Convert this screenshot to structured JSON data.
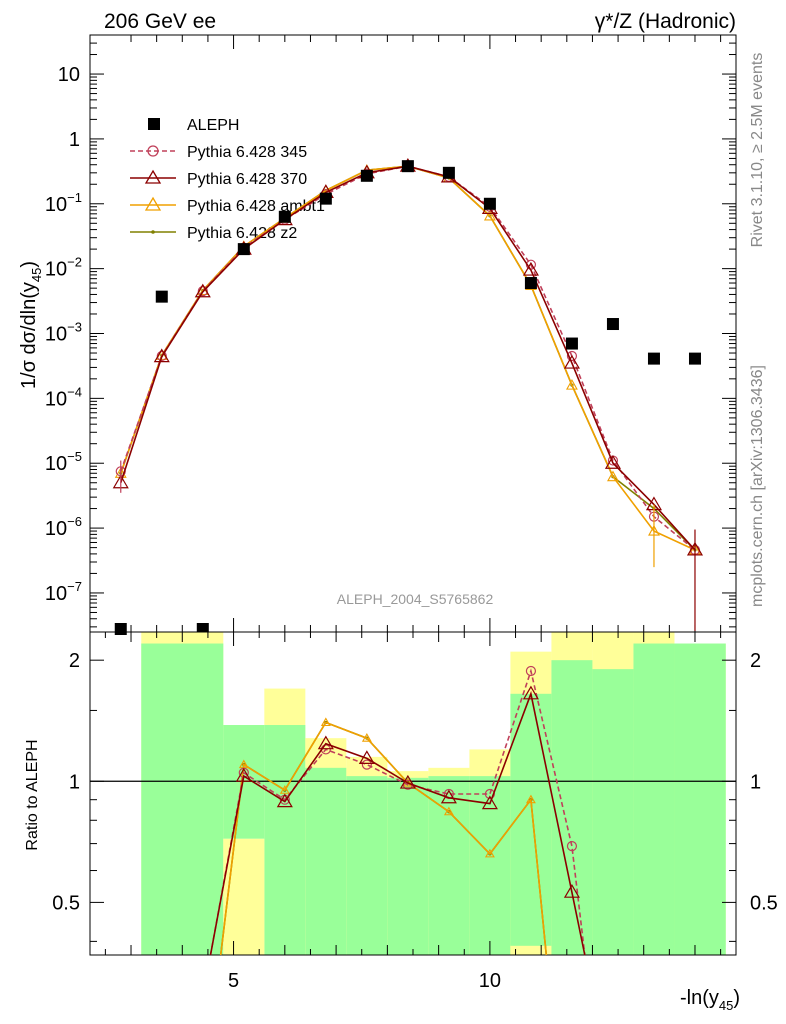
{
  "header": {
    "left_title": "206 GeV ee",
    "right_title": "γ*/Z (Hadronic)",
    "side_label_top": "Rivet 3.1.10, ≥ 2.5M events",
    "side_label_bottom": "mcplots.cern.ch [arXiv:1306.3436]",
    "watermark": "ALEPH_2004_S5765862"
  },
  "chart_data": [
    {
      "type": "line",
      "ylabel": "1/σ  dσ/dln(y45)",
      "ylabel_main": "1/σ  dσ/dln(y",
      "ylabel_sub": "45",
      "ylabel_close": ")",
      "yscale": "log",
      "ylim": [
        2.5e-08,
        40
      ],
      "xlim": [
        2.2,
        14.8
      ],
      "ytick_labels": [
        {
          "v": 10,
          "t": "10",
          "e": ""
        },
        {
          "v": 1,
          "t": "1",
          "e": ""
        },
        {
          "v": 0.1,
          "t": "10",
          "e": "−1"
        },
        {
          "v": 0.01,
          "t": "10",
          "e": "−2"
        },
        {
          "v": 0.001,
          "t": "10",
          "e": "−3"
        },
        {
          "v": 0.0001,
          "t": "10",
          "e": "−4"
        },
        {
          "v": 1e-05,
          "t": "10",
          "e": "−5"
        },
        {
          "v": 1e-06,
          "t": "10",
          "e": "−6"
        },
        {
          "v": 1e-07,
          "t": "10",
          "e": "−7"
        }
      ],
      "legend": {
        "placement": "top-left",
        "entries": [
          {
            "name": "ALEPH",
            "color": "#000000",
            "marker": "square"
          },
          {
            "name": "Pythia 6.428 345",
            "color": "#c0405a",
            "marker": "circle",
            "dash": true
          },
          {
            "name": "Pythia 6.428 370",
            "color": "#8b0000",
            "marker": "triangle"
          },
          {
            "name": "Pythia 6.428 ambt1",
            "color": "#f0a000",
            "marker": "triangle"
          },
          {
            "name": "Pythia 6.428 z2",
            "color": "#808000",
            "marker": "dot"
          }
        ]
      },
      "data": {
        "name": "ALEPH",
        "x": [
          2.8,
          3.6,
          4.4,
          5.2,
          6.0,
          6.8,
          7.6,
          8.4,
          9.2,
          10.0,
          10.8,
          11.6,
          12.4,
          13.2,
          14.0
        ],
        "y": [
          2.6e-08,
          0.0037,
          2.6e-08,
          0.02,
          0.063,
          0.12,
          0.27,
          0.38,
          0.3,
          0.1,
          0.006,
          0.0007,
          0.0014,
          0.00041,
          0.00041
        ]
      },
      "series": [
        {
          "name": "Pythia 6.428 345",
          "color": "#c0405a",
          "x": [
            2.8,
            3.6,
            4.4,
            5.2,
            6.0,
            6.8,
            7.6,
            8.4,
            9.2,
            10.0,
            10.8,
            11.6,
            12.4,
            13.2,
            14.0
          ],
          "y": [
            7.5e-06,
            0.00045,
            0.0045,
            0.021,
            0.057,
            0.14,
            0.29,
            0.38,
            0.26,
            0.09,
            0.0115,
            0.00045,
            1.1e-05,
            1.5e-06,
            4.6e-07
          ]
        },
        {
          "name": "Pythia 6.428 370",
          "color": "#8b0000",
          "x": [
            2.8,
            3.6,
            4.4,
            5.2,
            6.0,
            6.8,
            7.6,
            8.4,
            9.2,
            10.0,
            10.8,
            11.6,
            12.4,
            13.2,
            14.0
          ],
          "y": [
            5e-06,
            0.00044,
            0.0044,
            0.02,
            0.057,
            0.15,
            0.3,
            0.38,
            0.26,
            0.085,
            0.0095,
            0.00035,
            1e-05,
            2.3e-06,
            4.6e-07
          ]
        },
        {
          "name": "Pythia 6.428 ambt1",
          "color": "#f0a000",
          "x": [
            2.8,
            3.6,
            4.4,
            5.2,
            6.0,
            6.8,
            7.6,
            8.4,
            9.2,
            10.0,
            10.8,
            11.6,
            12.4,
            13.2,
            14.0
          ],
          "y": [
            7e-06,
            0.00046,
            0.0046,
            0.022,
            0.06,
            0.16,
            0.33,
            0.38,
            0.25,
            0.065,
            0.0055,
            0.00016,
            6.2e-06,
            9e-07,
            4.6e-07
          ]
        },
        {
          "name": "Pythia 6.428 z2",
          "color": "#808000",
          "x": [
            2.8,
            3.6,
            4.4,
            5.2,
            6.0,
            6.8,
            7.6,
            8.4,
            9.2,
            10.0,
            10.8,
            11.6,
            12.4,
            13.2,
            14.0
          ],
          "y": [
            7e-06,
            0.00046,
            0.0046,
            0.022,
            0.06,
            0.16,
            0.33,
            0.38,
            0.25,
            0.065,
            0.0055,
            0.00016,
            6.2e-06,
            2e-06,
            4.6e-07
          ]
        }
      ]
    },
    {
      "type": "line",
      "xlabel": "-ln(y45)",
      "xlabel_main": "-ln(y",
      "xlabel_sub": "45",
      "xlabel_close": ")",
      "ylabel": "Ratio to ALEPH",
      "yscale": "log",
      "ylim": [
        0.37,
        2.35
      ],
      "xlim": [
        2.2,
        14.8
      ],
      "xtick_labels": [
        5,
        10
      ],
      "ytick_labels": [
        0.5,
        1,
        2
      ],
      "bands": {
        "edges": [
          3.2,
          4.8,
          5.6,
          6.4,
          7.2,
          8.0,
          8.8,
          9.6,
          10.4,
          11.2,
          12.0,
          12.8,
          13.6,
          14.6
        ],
        "green": [
          [
            0.37,
            2.2
          ],
          [
            0.37,
            0.37
          ],
          [
            0.37,
            1.38
          ],
          [
            0.37,
            1.08
          ],
          [
            0.37,
            1.03
          ],
          [
            0.37,
            1.02
          ],
          [
            0.37,
            1.03
          ],
          [
            0.37,
            1.03
          ],
          [
            0.37,
            1.65
          ],
          [
            0.37,
            2.0
          ],
          [
            0.37,
            1.9
          ],
          [
            0.37,
            2.2
          ],
          [
            0.37,
            2.2
          ]
        ],
        "yellow": [
          [
            0.37,
            2.35
          ],
          [
            0.37,
            0.37
          ],
          [
            0.37,
            1.7
          ],
          [
            0.37,
            1.28
          ],
          [
            0.37,
            1.15
          ],
          [
            0.37,
            1.06
          ],
          [
            0.37,
            1.08
          ],
          [
            0.37,
            1.2
          ],
          [
            0.37,
            2.1
          ],
          [
            0.37,
            2.35
          ],
          [
            0.37,
            2.35
          ],
          [
            0.37,
            2.35
          ],
          [
            0.37,
            2.2
          ]
        ],
        "note": "bands per bin as [low, high]"
      },
      "series": [
        {
          "name": "Pythia 6.428 345",
          "x": [
            5.2,
            6.0,
            6.8,
            7.6,
            8.4,
            9.2,
            10.0,
            10.8,
            11.6
          ],
          "y": [
            1.05,
            0.9,
            1.2,
            1.1,
            0.98,
            0.93,
            0.93,
            1.88,
            0.69
          ]
        },
        {
          "name": "Pythia 6.428 370",
          "x": [
            5.2,
            6.0,
            6.8,
            7.6,
            8.4,
            9.2,
            10.0,
            10.8,
            11.6
          ],
          "y": [
            1.03,
            0.89,
            1.24,
            1.14,
            0.99,
            0.91,
            0.88,
            1.65,
            0.53
          ]
        },
        {
          "name": "Pythia 6.428 ambt1",
          "x": [
            5.2,
            6.0,
            6.8,
            7.6,
            8.4,
            9.2,
            10.0,
            10.8
          ],
          "y": [
            1.1,
            0.95,
            1.4,
            1.28,
            0.99,
            0.84,
            0.66,
            0.9
          ]
        },
        {
          "name": "Pythia 6.428 z2",
          "x": [
            5.2,
            6.0,
            6.8,
            7.6,
            8.4,
            9.2,
            10.0,
            10.8
          ],
          "y": [
            1.1,
            0.95,
            1.4,
            1.28,
            0.99,
            0.84,
            0.66,
            0.9
          ]
        }
      ]
    }
  ]
}
